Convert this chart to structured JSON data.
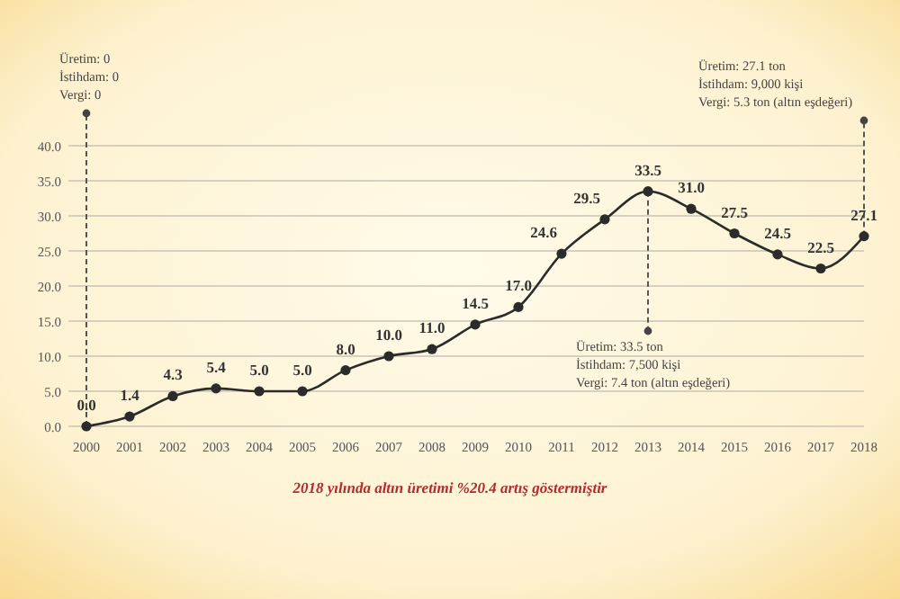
{
  "chart_data": {
    "type": "line",
    "categories": [
      "2000",
      "2001",
      "2002",
      "2003",
      "2004",
      "2005",
      "2006",
      "2007",
      "2008",
      "2009",
      "2010",
      "2011",
      "2012",
      "2013",
      "2014",
      "2015",
      "2016",
      "2017",
      "2018"
    ],
    "series": [
      {
        "color": "#2b2b2b",
        "values": [
          0.0,
          1.4,
          4.3,
          5.4,
          5.0,
          5.0,
          8.0,
          10.0,
          11.0,
          14.5,
          17.0,
          24.6,
          29.5,
          33.5,
          31.0,
          27.5,
          24.5,
          22.5,
          27.1
        ]
      }
    ],
    "ylim": [
      0,
      40
    ],
    "yticks": [
      {
        "value": 0,
        "label": "0.0"
      },
      {
        "value": 5,
        "label": "5.0"
      },
      {
        "value": 10,
        "label": "10.0"
      },
      {
        "value": 15,
        "label": "15.0"
      },
      {
        "value": 20,
        "label": "20.0"
      },
      {
        "value": 25,
        "label": "25.0"
      },
      {
        "value": 30,
        "label": "30.0"
      },
      {
        "value": 35,
        "label": "35.0"
      },
      {
        "value": 40,
        "label": "40.0"
      }
    ],
    "grid": "y",
    "marker": "circle",
    "line_style": "solid",
    "value_labels": [
      "0.0",
      "1.4",
      "4.3",
      "5.4",
      "5.0",
      "5.0",
      "8.0",
      "10.0",
      "11.0",
      "14.5",
      "17.0",
      "24.6",
      "29.5",
      "33.5",
      "31.0",
      "27.5",
      "24.5",
      "22.5",
      "27.1"
    ],
    "annotations": [
      {
        "text": "Üretim: 0\nİstihdam: 0\nVergi: 0",
        "x": "2000",
        "y": 0
      },
      {
        "text": "Üretim: 33.5 ton\nİstihdam: 7,500 kişi\nVergi: 7.4 ton (altın eşdeğeri)",
        "x": "2013",
        "y": 33.5
      },
      {
        "text": "Üretim: 27.1 ton\nİstihdam: 9,000 kişi\nVergi: 5.3 ton (altın eşdeğeri)",
        "x": "2018",
        "y": 27.1
      },
      "2018 yılında altın üretimi %20.4 artış göstermiştir"
    ]
  }
}
